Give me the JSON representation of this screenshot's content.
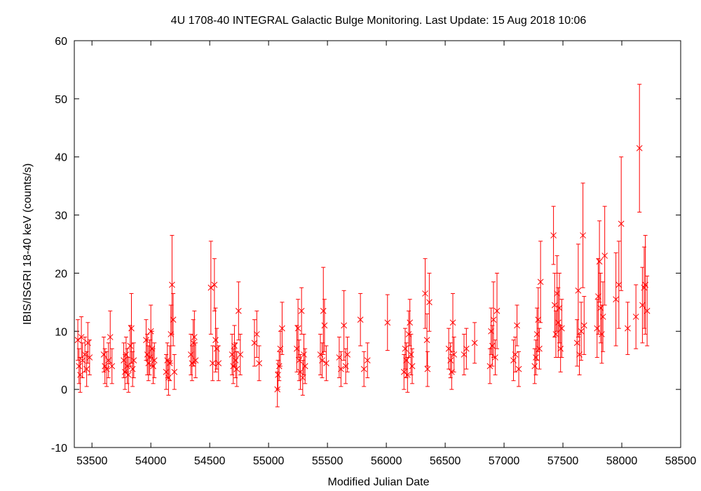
{
  "chart_data": {
    "type": "scatter",
    "title": "4U 1708-40   INTEGRAL Galactic Bulge Monitoring.  Last Update: 15 Aug 2018 10:06",
    "xlabel": "Modified Julian Date",
    "ylabel": "IBIS/ISGRI 18-40 keV (counts/s)",
    "xlim": [
      53350,
      58500
    ],
    "ylim": [
      -10,
      60
    ],
    "x_ticks": [
      53500,
      54000,
      54500,
      55000,
      55500,
      56000,
      56500,
      57000,
      57500,
      58000,
      58500
    ],
    "y_ticks": [
      -10,
      0,
      10,
      20,
      30,
      40,
      50,
      60
    ],
    "grid": false,
    "legend": "none",
    "marker": "x",
    "color": "#ff0000",
    "series": [
      {
        "points": [
          [
            53380,
            8.5,
            3.5
          ],
          [
            53390,
            4.0,
            3.0
          ],
          [
            53400,
            2.5,
            3.0
          ],
          [
            53410,
            9.0,
            3.5
          ],
          [
            53420,
            5.0,
            3.0
          ],
          [
            53440,
            6.0,
            3.0
          ],
          [
            53455,
            3.5,
            3.0
          ],
          [
            53465,
            8.0,
            3.5
          ],
          [
            53480,
            5.5,
            3.0
          ],
          [
            53600,
            6.0,
            3.0
          ],
          [
            53610,
            4.0,
            3.0
          ],
          [
            53625,
            3.5,
            3.0
          ],
          [
            53640,
            5.0,
            3.0
          ],
          [
            53655,
            9.0,
            4.5
          ],
          [
            53670,
            4.0,
            3.0
          ],
          [
            53770,
            5.0,
            3.0
          ],
          [
            53780,
            3.0,
            3.0
          ],
          [
            53790,
            6.0,
            3.0
          ],
          [
            53800,
            4.0,
            3.0
          ],
          [
            53810,
            2.5,
            3.0
          ],
          [
            53825,
            7.5,
            3.5
          ],
          [
            53835,
            10.5,
            6.0
          ],
          [
            53845,
            3.5,
            3.0
          ],
          [
            53855,
            5.0,
            3.0
          ],
          [
            53960,
            8.5,
            3.5
          ],
          [
            53970,
            6.0,
            3.5
          ],
          [
            53980,
            4.5,
            3.0
          ],
          [
            53990,
            5.5,
            3.0
          ],
          [
            54000,
            10.0,
            4.5
          ],
          [
            54010,
            7.0,
            3.0
          ],
          [
            54020,
            4.0,
            3.0
          ],
          [
            54030,
            5.0,
            3.0
          ],
          [
            54130,
            3.0,
            3.0
          ],
          [
            54140,
            5.0,
            3.0
          ],
          [
            54150,
            2.0,
            3.0
          ],
          [
            54160,
            4.5,
            3.0
          ],
          [
            54170,
            9.5,
            5.0
          ],
          [
            54180,
            18.0,
            8.5
          ],
          [
            54190,
            12.0,
            4.5
          ],
          [
            54200,
            3.0,
            3.0
          ],
          [
            54340,
            6.0,
            3.5
          ],
          [
            54350,
            4.5,
            3.0
          ],
          [
            54360,
            8.0,
            4.0
          ],
          [
            54370,
            9.0,
            4.5
          ],
          [
            54380,
            5.0,
            3.0
          ],
          [
            54510,
            17.5,
            8.0
          ],
          [
            54525,
            4.5,
            3.0
          ],
          [
            54540,
            18.0,
            4.5
          ],
          [
            54550,
            8.5,
            5.5
          ],
          [
            54560,
            7.0,
            3.5
          ],
          [
            54575,
            4.5,
            3.0
          ],
          [
            54690,
            6.0,
            3.5
          ],
          [
            54700,
            4.0,
            3.0
          ],
          [
            54710,
            7.5,
            3.5
          ],
          [
            54720,
            5.0,
            3.0
          ],
          [
            54730,
            3.5,
            3.0
          ],
          [
            54745,
            13.5,
            5.0
          ],
          [
            54760,
            6.0,
            3.5
          ],
          [
            54880,
            8.0,
            4.0
          ],
          [
            54900,
            9.5,
            4.0
          ],
          [
            54920,
            4.5,
            3.0
          ],
          [
            55075,
            0.0,
            3.0
          ],
          [
            55080,
            2.5,
            2.5
          ],
          [
            55090,
            4.0,
            2.5
          ],
          [
            55100,
            7.0,
            3.0
          ],
          [
            55115,
            10.5,
            4.5
          ],
          [
            55240,
            7.0,
            4.0
          ],
          [
            55250,
            10.5,
            5.0
          ],
          [
            55260,
            5.0,
            3.5
          ],
          [
            55270,
            3.0,
            3.0
          ],
          [
            55280,
            13.5,
            4.0
          ],
          [
            55290,
            2.0,
            3.0
          ],
          [
            55300,
            6.0,
            3.5
          ],
          [
            55310,
            4.0,
            3.0
          ],
          [
            55440,
            6.0,
            3.5
          ],
          [
            55455,
            5.0,
            3.0
          ],
          [
            55465,
            13.5,
            7.5
          ],
          [
            55475,
            11.0,
            4.5
          ],
          [
            55490,
            4.5,
            3.0
          ],
          [
            55600,
            5.5,
            3.5
          ],
          [
            55615,
            3.5,
            3.0
          ],
          [
            55640,
            11.0,
            6.0
          ],
          [
            55655,
            4.0,
            3.0
          ],
          [
            55670,
            6.0,
            3.0
          ],
          [
            55780,
            12.0,
            4.5
          ],
          [
            55810,
            3.5,
            3.0
          ],
          [
            55840,
            5.0,
            3.0
          ],
          [
            56010,
            11.5,
            4.8
          ],
          [
            56150,
            3.0,
            3.0
          ],
          [
            56160,
            7.0,
            3.5
          ],
          [
            56170,
            5.0,
            3.0
          ],
          [
            56180,
            2.5,
            3.0
          ],
          [
            56190,
            9.5,
            4.0
          ],
          [
            56200,
            11.5,
            4.0
          ],
          [
            56210,
            6.0,
            3.5
          ],
          [
            56220,
            4.0,
            3.0
          ],
          [
            56330,
            16.5,
            6.0
          ],
          [
            56345,
            8.5,
            4.5
          ],
          [
            56350,
            3.5,
            3.0
          ],
          [
            56365,
            15.0,
            5.0
          ],
          [
            56530,
            7.0,
            3.5
          ],
          [
            56545,
            5.0,
            3.0
          ],
          [
            56555,
            3.0,
            3.0
          ],
          [
            56565,
            11.5,
            5.0
          ],
          [
            56575,
            6.0,
            3.0
          ],
          [
            56660,
            6.0,
            3.5
          ],
          [
            56680,
            7.0,
            3.5
          ],
          [
            56750,
            8.0,
            3.5
          ],
          [
            56880,
            4.0,
            3.0
          ],
          [
            56890,
            10.0,
            4.0
          ],
          [
            56900,
            7.5,
            3.5
          ],
          [
            56910,
            12.0,
            6.5
          ],
          [
            56925,
            5.5,
            3.0
          ],
          [
            56940,
            13.5,
            6.5
          ],
          [
            57080,
            5.0,
            3.5
          ],
          [
            57095,
            6.0,
            3.0
          ],
          [
            57110,
            11.0,
            3.5
          ],
          [
            57125,
            3.5,
            3.0
          ],
          [
            57260,
            4.0,
            3.0
          ],
          [
            57270,
            5.5,
            3.0
          ],
          [
            57280,
            9.5,
            4.5
          ],
          [
            57290,
            12.0,
            5.5
          ],
          [
            57300,
            7.0,
            3.5
          ],
          [
            57310,
            18.5,
            7.0
          ],
          [
            57420,
            26.5,
            5.0
          ],
          [
            57430,
            14.5,
            5.5
          ],
          [
            57440,
            9.5,
            4.0
          ],
          [
            57450,
            16.5,
            6.5
          ],
          [
            57460,
            11.5,
            6.0
          ],
          [
            57470,
            14.0,
            6.0
          ],
          [
            57480,
            7.0,
            4.0
          ],
          [
            57490,
            10.5,
            5.0
          ],
          [
            57620,
            8.0,
            4.0
          ],
          [
            57630,
            17.0,
            8.0
          ],
          [
            57640,
            6.0,
            3.5
          ],
          [
            57655,
            10.0,
            5.0
          ],
          [
            57670,
            26.5,
            9.0
          ],
          [
            57680,
            11.0,
            5.0
          ],
          [
            57790,
            10.5,
            5.0
          ],
          [
            57800,
            16.0,
            6.5
          ],
          [
            57810,
            22.0,
            7.0
          ],
          [
            57820,
            14.0,
            6.0
          ],
          [
            57830,
            9.5,
            5.0
          ],
          [
            57840,
            12.5,
            6.0
          ],
          [
            57855,
            23.0,
            8.5
          ],
          [
            57950,
            15.5,
            8.0
          ],
          [
            57975,
            18.0,
            7.5
          ],
          [
            57995,
            28.5,
            11.5
          ],
          [
            58050,
            10.5,
            4.5
          ],
          [
            58120,
            12.5,
            5.5
          ],
          [
            58150,
            41.5,
            11.0
          ],
          [
            58175,
            14.5,
            6.5
          ],
          [
            58190,
            17.5,
            7.0
          ],
          [
            58200,
            18.0,
            8.5
          ],
          [
            58215,
            13.5,
            6.0
          ]
        ]
      }
    ]
  }
}
